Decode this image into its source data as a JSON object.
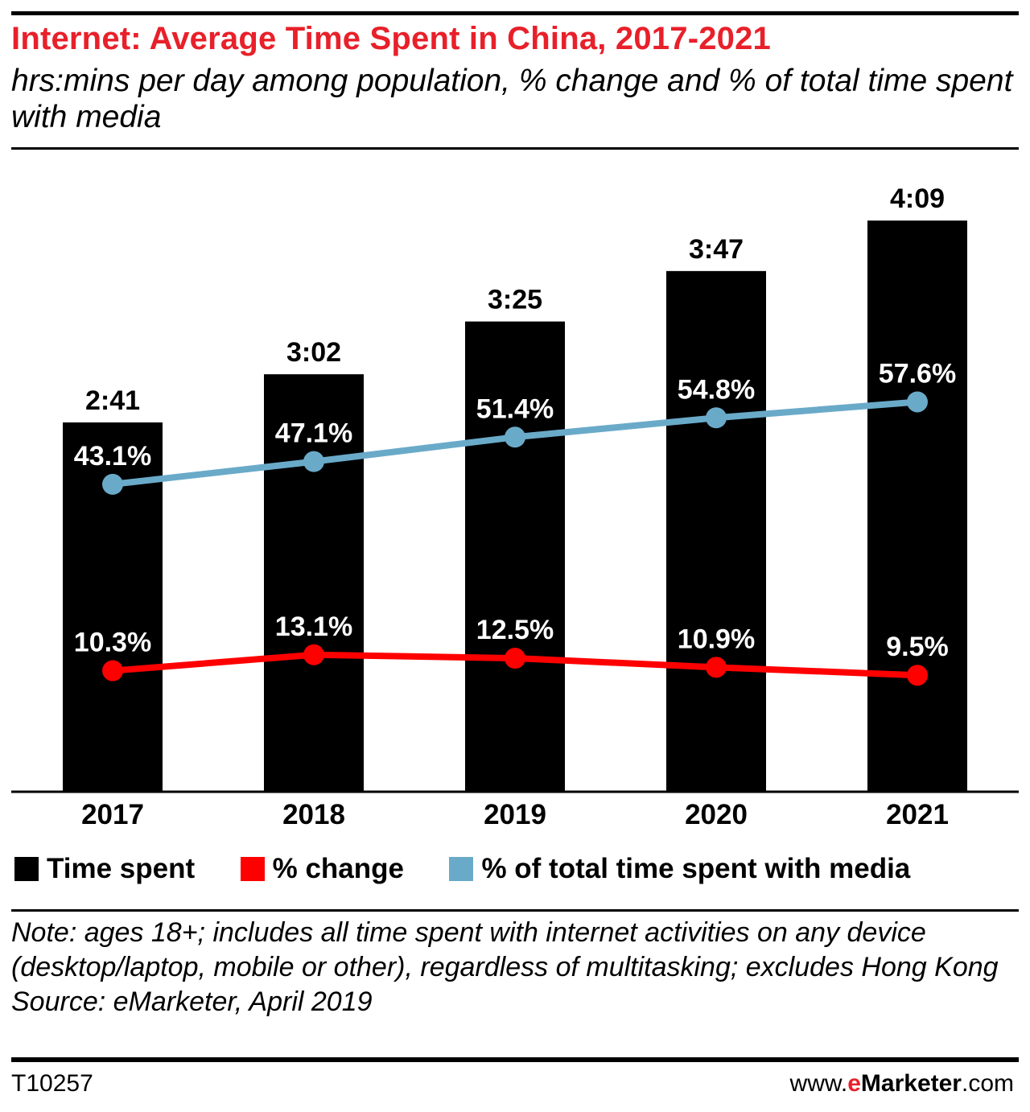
{
  "header": {
    "title": "Internet: Average Time Spent in China, 2017-2021",
    "subtitle": "hrs:mins per day among population, % change and % of total time spent with media"
  },
  "chart_data": {
    "type": "bar",
    "categories": [
      "2017",
      "2018",
      "2019",
      "2020",
      "2021"
    ],
    "bar_series": {
      "name": "Time spent",
      "values_minutes": [
        161,
        182,
        205,
        227,
        249
      ],
      "labels": [
        "2:41",
        "3:02",
        "3:25",
        "3:47",
        "4:09"
      ],
      "color": "#000000"
    },
    "line_series": [
      {
        "name": "% change",
        "values": [
          10.3,
          13.1,
          12.5,
          10.9,
          9.5
        ],
        "labels": [
          "10.3%",
          "13.1%",
          "12.5%",
          "10.9%",
          "9.5%"
        ],
        "color": "#ff0000"
      },
      {
        "name": "% of total time spent with media",
        "values": [
          43.1,
          47.1,
          51.4,
          54.8,
          57.6
        ],
        "labels": [
          "43.1%",
          "47.1%",
          "51.4%",
          "54.8%",
          "57.6%"
        ],
        "color": "#6aaac9"
      }
    ],
    "ylim_minutes": [
      0,
      275
    ],
    "ylim_percent": [
      -11,
      100
    ],
    "grid": false,
    "legend": "bottom"
  },
  "legend": {
    "items": [
      {
        "label": "Time spent",
        "color": "#000000"
      },
      {
        "label": "% change",
        "color": "#ff0000"
      },
      {
        "label": "% of total time spent with media",
        "color": "#6aaac9"
      }
    ]
  },
  "note": {
    "text": "Note: ages 18+; includes all time spent with internet activities on any device (desktop/laptop, mobile or other), regardless of multitasking; excludes Hong Kong",
    "source": "Source: eMarketer, April 2019"
  },
  "footer": {
    "id": "T10257",
    "site_prefix": "www.",
    "site_brand_e": "e",
    "site_brand_rest": "Marketer",
    "site_suffix": ".com"
  }
}
